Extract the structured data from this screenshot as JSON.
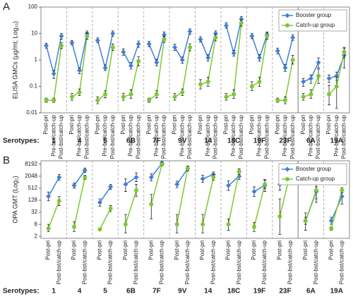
{
  "chart_data": [
    {
      "type": "line",
      "title": "A",
      "ylabel": "ELISA GMCs (µg/ml; Log₁₀)",
      "yscale": "log",
      "ylim": [
        0.01,
        100
      ],
      "yticks": [
        0.01,
        0.1,
        1,
        10,
        100
      ],
      "legend": "upper right",
      "group_label": "Serotypes:",
      "groups": [
        "1",
        "4",
        "5",
        "6B",
        "7F",
        "9V",
        "14",
        "18C",
        "19F",
        "23F",
        "6A",
        "19A"
      ],
      "categories": [
        "Post-pri",
        "Pre-bst/catch-up",
        "Post-bst/catch-up",
        "Post-pri",
        "Pre-bst/catch-up",
        "Post-bst/catch-up",
        "Post-pri",
        "Pre-bst/catch-up",
        "Post-bst/catch-up",
        "Post-pri",
        "Pre-bst/catch-up",
        "Post-bst/catch-up",
        "Post-pri",
        "Pre-bst/catch-up",
        "Post-bst/catch-up",
        "Post-pri",
        "Pre-bst/catch-up",
        "Post-bst/catch-up",
        "Post-pri",
        "Pre-bst/catch-up",
        "Post-bst/catch-up",
        "Post-pri",
        "Pre-bst/catch-up",
        "Post-bst/catch-up",
        "Post-pri",
        "Pre-bst/catch-up",
        "Post-bst/catch-up",
        "Post-pri",
        "Pre-bst/catch-up",
        "Post-bst/catch-up",
        "Post-pri",
        "Pre-bst/catch-up",
        "Post-bst/catch-up",
        "Post-pri",
        "Pre-bst/catch-up",
        "Post-bst/catch-up"
      ],
      "series": [
        {
          "name": "Booster group",
          "color": "#3f7fd8",
          "marker": "diamond",
          "values": [
            3.5,
            0.3,
            8,
            4.5,
            0.4,
            10,
            5.5,
            0.5,
            10,
            2,
            0.6,
            4,
            4,
            0.8,
            9,
            3,
            1,
            12,
            6,
            1.2,
            10,
            20,
            1.8,
            35,
            8,
            1.2,
            9,
            2.2,
            0.5,
            7,
            0.15,
            0.2,
            0.8,
            0.2,
            0.25,
            1.5
          ],
          "error_low": [
            2.8,
            0.2,
            6,
            3.7,
            0.3,
            8,
            4.5,
            0.4,
            8,
            1.5,
            0.45,
            3,
            3.2,
            0.6,
            7,
            2.3,
            0.75,
            9.5,
            4.8,
            0.9,
            8,
            16,
            1.4,
            28,
            6.3,
            0.9,
            7,
            1.7,
            0.37,
            5.5,
            0.1,
            0.13,
            0.5,
            0.14,
            0.17,
            0.5
          ],
          "error_high": [
            4.3,
            0.4,
            10,
            5.5,
            0.5,
            12.5,
            6.8,
            0.65,
            12.5,
            2.6,
            0.8,
            5.2,
            5,
            1.05,
            11.5,
            3.9,
            1.3,
            15,
            7.6,
            1.6,
            12.5,
            25,
            2.3,
            44,
            10,
            1.6,
            11.5,
            2.8,
            0.68,
            9,
            0.2,
            0.27,
            1.2,
            0.27,
            0.35,
            2.8
          ]
        },
        {
          "name": "Catch-up group",
          "color": "#7dc832",
          "marker": "circle",
          "values": [
            0.03,
            0.03,
            3.5,
            0.04,
            0.06,
            8,
            0.03,
            0.05,
            3,
            0.04,
            0.05,
            0.9,
            0.03,
            0.05,
            6,
            0.04,
            0.06,
            3,
            0.12,
            0.15,
            7,
            0.04,
            0.05,
            25,
            0.1,
            0.15,
            8,
            0.03,
            0.03,
            1,
            0.04,
            0.05,
            0.25,
            0.05,
            0.1,
            2
          ],
          "error_low": [
            0.025,
            0.025,
            2.7,
            0.03,
            0.045,
            6,
            0.022,
            0.037,
            2.3,
            0.03,
            0.035,
            0.6,
            0.025,
            0.037,
            4.6,
            0.03,
            0.045,
            2.2,
            0.08,
            0.1,
            5.3,
            0.03,
            0.035,
            19,
            0.07,
            0.1,
            6,
            0.025,
            0.022,
            0.7,
            0.03,
            0.035,
            0.13,
            0.02,
            0.015,
            1.2
          ],
          "error_high": [
            0.036,
            0.036,
            4.5,
            0.054,
            0.08,
            10.5,
            0.04,
            0.068,
            4,
            0.055,
            0.075,
            1.35,
            0.036,
            0.068,
            7.8,
            0.054,
            0.08,
            4.1,
            0.18,
            0.22,
            9.2,
            0.054,
            0.075,
            32,
            0.15,
            0.22,
            10.5,
            0.036,
            0.04,
            1.5,
            0.054,
            0.075,
            0.45,
            0.11,
            0.22,
            3
          ]
        }
      ]
    },
    {
      "type": "line",
      "title": "B",
      "ylabel": "OPA GMT (Log₂)",
      "yscale": "log",
      "ylim": [
        1.6,
        12000
      ],
      "yticks": [
        2,
        8,
        32,
        128,
        512,
        2048,
        8192
      ],
      "legend": "upper right",
      "group_label": "Serotypes:",
      "groups": [
        "1",
        "4",
        "5",
        "6B",
        "7F",
        "9V",
        "14",
        "18C",
        "19F",
        "23F",
        "6A",
        "19A"
      ],
      "categories": [
        "Post-pri",
        "Post-bst/catch-up",
        "Post-pri",
        "Post-bst/catch-up",
        "Post-pri",
        "Post-bst/catch-up",
        "Post-pri",
        "Post-bst/catch-up",
        "Post-pri",
        "Post-bst/catch-up",
        "Post-pri",
        "Post-bst/catch-up",
        "Post-pri",
        "Post-bst/catch-up",
        "Post-pri",
        "Post-bst/catch-up",
        "Post-pri",
        "Post-bst/catch-up",
        "Post-pri",
        "Post-bst/catch-up",
        "Post-pri",
        "Post-bst/catch-up",
        "Post-pri",
        "Post-bst/catch-up"
      ],
      "series": [
        {
          "name": "Booster group",
          "color": "#3f7fd8",
          "marker": "diamond",
          "values": [
            200,
            1800,
            700,
            4000,
            100,
            600,
            800,
            1800,
            1800,
            9000,
            800,
            5000,
            1500,
            2500,
            700,
            2000,
            350,
            700,
            800,
            5000,
            12,
            350,
            12,
            200
          ],
          "error_low": [
            120,
            1300,
            520,
            3100,
            65,
            450,
            350,
            1100,
            1200,
            7000,
            550,
            3800,
            1000,
            1900,
            400,
            1400,
            200,
            350,
            400,
            3600,
            4,
            150,
            8,
            80
          ],
          "error_high": [
            330,
            2500,
            950,
            5200,
            150,
            800,
            1500,
            3000,
            2700,
            11000,
            1150,
            6500,
            2300,
            3300,
            1200,
            2900,
            600,
            1400,
            1600,
            7000,
            30,
            600,
            18,
            400
          ]
        },
        {
          "name": "Catch-up group",
          "color": "#7dc832",
          "marker": "circle",
          "values": [
            5,
            120,
            6,
            1800,
            4.5,
            50,
            8,
            400,
            80,
            8000,
            8,
            5000,
            8,
            1800,
            8,
            3500,
            6,
            800,
            20,
            3500,
            12,
            400,
            5,
            400
          ],
          "error_low": [
            3.5,
            70,
            3.5,
            1400,
            4,
            35,
            3,
            200,
            15,
            6500,
            3,
            3800,
            3,
            1300,
            4,
            2500,
            3.5,
            500,
            2.5,
            1800,
            8,
            100,
            4,
            300
          ],
          "error_high": [
            8,
            200,
            11,
            2300,
            5,
            70,
            25,
            800,
            250,
            10000,
            25,
            6500,
            25,
            2500,
            15,
            4800,
            10,
            1300,
            150,
            6500,
            18,
            1000,
            6,
            550
          ]
        }
      ]
    }
  ]
}
